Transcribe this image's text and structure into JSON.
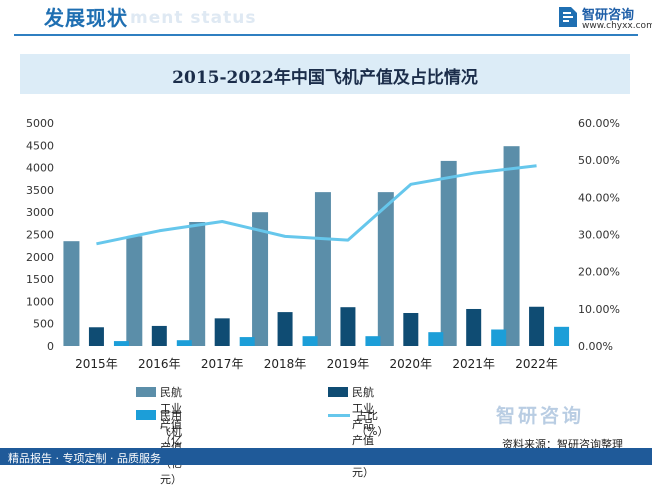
{
  "header": {
    "title": "发展现状",
    "ghost_text": "ment status"
  },
  "brand": {
    "name": "智研咨询",
    "url": "www.chyxx.com",
    "watermark": "智研咨询"
  },
  "chart_data": {
    "type": "bar",
    "title": "2015-2022年中国飞机产值及占比情况",
    "categories": [
      "2015年",
      "2016年",
      "2017年",
      "2018年",
      "2019年",
      "2020年",
      "2021年",
      "2022年"
    ],
    "series": [
      {
        "name": "民航工业产值（亿元）",
        "kind": "bar",
        "axis": "left",
        "color": "#5b8ea9",
        "values": [
          2350,
          2460,
          2780,
          3000,
          3450,
          3450,
          4150,
          4480
        ]
      },
      {
        "name": "民航工业产品产值（亿元）",
        "kind": "bar",
        "axis": "left",
        "color": "#0f4c73",
        "values": [
          420,
          450,
          620,
          760,
          870,
          740,
          830,
          880
        ]
      },
      {
        "name": "民用飞机产值（亿元）",
        "kind": "bar",
        "axis": "left",
        "color": "#1c9ed8",
        "values": [
          110,
          130,
          200,
          220,
          220,
          310,
          370,
          430
        ]
      },
      {
        "name": "占比（%）",
        "kind": "line",
        "axis": "right",
        "color": "#66c7ec",
        "values": [
          27.5,
          31.0,
          33.5,
          29.5,
          28.5,
          43.5,
          46.5,
          48.5
        ]
      }
    ],
    "ylim_left": [
      0,
      5000
    ],
    "yticks_left": [
      "0",
      "500",
      "1000",
      "1500",
      "2000",
      "2500",
      "3000",
      "3500",
      "4000",
      "4500",
      "5000"
    ],
    "ylim_right": [
      0,
      60
    ],
    "yticks_right": [
      "0.00%",
      "10.00%",
      "20.00%",
      "30.00%",
      "40.00%",
      "50.00%",
      "60.00%"
    ],
    "grid": false,
    "legend_position": "bottom"
  },
  "source": "资料来源：智研咨询整理",
  "footer": "精品报告 · 专项定制 · 品质服务"
}
